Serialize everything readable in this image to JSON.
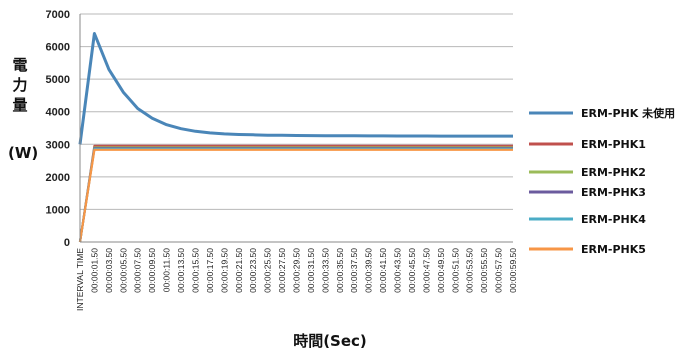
{
  "chart_data": {
    "type": "line",
    "ylabel": "電力量",
    "ylabel_unit": "(W)",
    "xlabel": "時間(Sec)",
    "ylim": [
      0,
      7000
    ],
    "yticks": [
      0,
      1000,
      2000,
      3000,
      4000,
      5000,
      6000,
      7000
    ],
    "grid": true,
    "legend_position": "right",
    "x_labels": [
      "INTERVAL TIME",
      "00:00:01.50",
      "00:00:03.50",
      "00:00:05.50",
      "00:00:07.50",
      "00:00:09.50",
      "00:00:11.50",
      "00:00:13.50",
      "00:00:15.50",
      "00:00:17.50",
      "00:00:19.50",
      "00:00:21.50",
      "00:00:23.50",
      "00:00:25.50",
      "00:00:27.50",
      "00:00:29.50",
      "00:00:31.50",
      "00:00:33.50",
      "00:00:35.50",
      "00:00:37.50",
      "00:00:39.50",
      "00:00:41.50",
      "00:00:43.50",
      "00:00:45.50",
      "00:00:47.50",
      "00:00:49.50",
      "00:00:51.50",
      "00:00:53.50",
      "00:00:55.50",
      "00:00:57.50",
      "00:00:59.50"
    ],
    "series": [
      {
        "name": "ERM-PHK 未使用",
        "color": "#4a86b8",
        "values": [
          3000,
          6400,
          5300,
          4600,
          4100,
          3800,
          3600,
          3480,
          3400,
          3350,
          3320,
          3300,
          3290,
          3280,
          3275,
          3270,
          3268,
          3265,
          3262,
          3260,
          3258,
          3256,
          3255,
          3254,
          3253,
          3252,
          3251,
          3250,
          3250,
          3250,
          3250
        ]
      },
      {
        "name": "ERM-PHK1",
        "color": "#c0504d",
        "values": [
          0,
          2950,
          2950,
          2950,
          2950,
          2950,
          2950,
          2950,
          2950,
          2950,
          2950,
          2950,
          2950,
          2950,
          2950,
          2950,
          2950,
          2950,
          2950,
          2950,
          2950,
          2950,
          2950,
          2950,
          2950,
          2950,
          2950,
          2950,
          2950,
          2950,
          2950
        ]
      },
      {
        "name": "ERM-PHK2",
        "color": "#9bbb59",
        "values": [
          0,
          2900,
          2900,
          2900,
          2900,
          2900,
          2900,
          2900,
          2900,
          2900,
          2900,
          2900,
          2900,
          2900,
          2900,
          2900,
          2900,
          2900,
          2900,
          2900,
          2900,
          2900,
          2900,
          2900,
          2900,
          2900,
          2900,
          2900,
          2900,
          2900,
          2900
        ]
      },
      {
        "name": "ERM-PHK3",
        "color": "#6b5b9e",
        "values": [
          0,
          2880,
          2880,
          2880,
          2880,
          2880,
          2880,
          2880,
          2880,
          2880,
          2880,
          2880,
          2880,
          2880,
          2880,
          2880,
          2880,
          2880,
          2880,
          2880,
          2880,
          2880,
          2880,
          2880,
          2880,
          2880,
          2880,
          2880,
          2880,
          2880,
          2880
        ]
      },
      {
        "name": "ERM-PHK4",
        "color": "#4bacc6",
        "values": [
          0,
          2860,
          2860,
          2860,
          2860,
          2860,
          2860,
          2860,
          2860,
          2860,
          2860,
          2860,
          2860,
          2860,
          2860,
          2860,
          2860,
          2860,
          2860,
          2860,
          2860,
          2860,
          2860,
          2860,
          2860,
          2860,
          2860,
          2860,
          2860,
          2860,
          2860
        ]
      },
      {
        "name": "ERM-PHK5",
        "color": "#f79646",
        "values": [
          0,
          2830,
          2830,
          2830,
          2830,
          2830,
          2830,
          2830,
          2830,
          2830,
          2830,
          2830,
          2830,
          2830,
          2830,
          2830,
          2830,
          2830,
          2830,
          2830,
          2830,
          2830,
          2830,
          2830,
          2830,
          2830,
          2830,
          2830,
          2830,
          2830,
          2830
        ]
      }
    ]
  }
}
